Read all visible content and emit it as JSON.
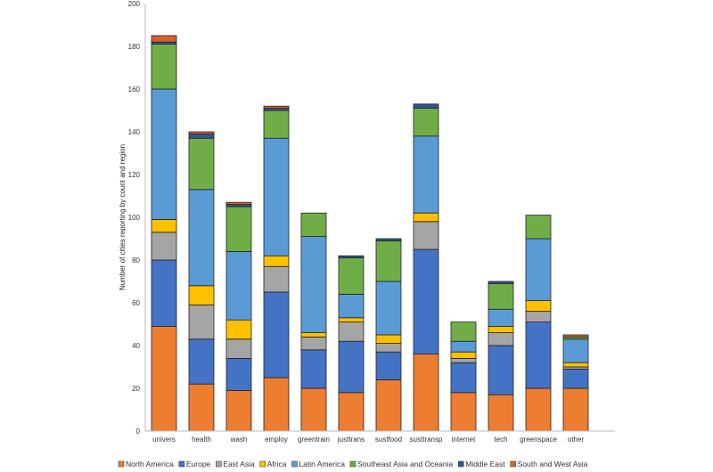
{
  "chart_data": {
    "type": "bar",
    "stacked": true,
    "title": "",
    "xlabel": "",
    "ylabel": "Number of cities reporting by count and region",
    "ylim": [
      0,
      200
    ],
    "yticks": [
      0,
      20,
      40,
      60,
      80,
      100,
      120,
      140,
      160,
      180,
      200
    ],
    "grid": false,
    "legend_position": "bottom",
    "categories": [
      "univers",
      "health",
      "wash",
      "employ",
      "greentrain",
      "justtrans",
      "sustfood",
      "susttransp",
      "internet",
      "tech",
      "greenspace",
      "other"
    ],
    "series": [
      {
        "name": "North America",
        "color": "#ED7D31",
        "values": [
          49,
          22,
          19,
          25,
          20,
          18,
          24,
          36,
          18,
          17,
          20,
          20
        ]
      },
      {
        "name": "Europe",
        "color": "#4472C4",
        "values": [
          31,
          21,
          15,
          40,
          18,
          24,
          13,
          49,
          14,
          23,
          31,
          9
        ]
      },
      {
        "name": "East Asia",
        "color": "#A5A5A5",
        "values": [
          13,
          16,
          9,
          12,
          6,
          9,
          4,
          13,
          2,
          6,
          5,
          1
        ]
      },
      {
        "name": "Africa",
        "color": "#FFC000",
        "values": [
          6,
          9,
          9,
          5,
          2,
          2,
          4,
          4,
          3,
          3,
          5,
          2
        ]
      },
      {
        "name": "Latin America",
        "color": "#5B9BD5",
        "values": [
          61,
          45,
          32,
          55,
          45,
          11,
          25,
          36,
          5,
          8,
          29,
          11
        ]
      },
      {
        "name": "Southeast Asia and Oceania",
        "color": "#70AD47",
        "values": [
          21,
          24,
          21,
          13,
          11,
          17,
          19,
          13,
          9,
          12,
          11,
          1
        ]
      },
      {
        "name": "Middle East",
        "color": "#2F5597",
        "values": [
          1,
          2,
          1,
          1,
          0,
          1,
          1,
          2,
          0,
          1,
          0,
          0
        ]
      },
      {
        "name": "South and West Asia",
        "color": "#D9622B",
        "values": [
          3,
          1,
          1,
          1,
          0,
          0,
          0,
          0,
          0,
          0,
          0,
          1
        ]
      }
    ]
  }
}
